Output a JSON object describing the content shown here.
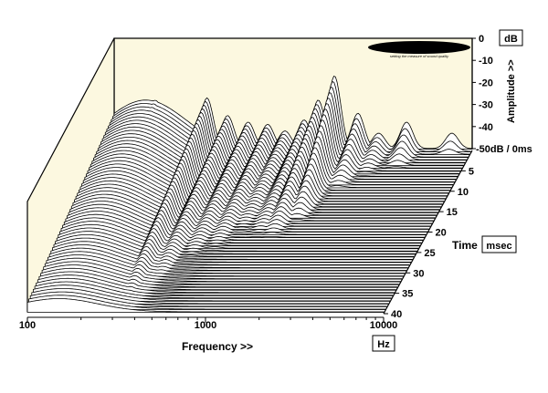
{
  "chart_data": {
    "type": "waterfall",
    "logo": "MILLER AUDIO RESEARCH",
    "logo_tagline": "setting the measure of sound quality",
    "x_axis": {
      "label": "Frequency >>",
      "unit": "Hz",
      "scale": "log",
      "range": [
        100,
        10000
      ],
      "ticks": [
        "100",
        "1000",
        "10000"
      ]
    },
    "amplitude_axis": {
      "label": "Amplitude >>",
      "unit": "dB",
      "range": [
        -50,
        0
      ],
      "ticks": [
        "0",
        "-10",
        "-20",
        "-30",
        "-40",
        "-50dB / 0ms"
      ]
    },
    "time_axis": {
      "label": "Time",
      "unit": "msec",
      "range": [
        0,
        40
      ],
      "ticks": [
        "5",
        "10",
        "15",
        "20",
        "25",
        "30",
        "35",
        "40"
      ]
    },
    "floor_db": -50,
    "slices": 60,
    "resonances": [
      {
        "freq_hz": 170,
        "peak_db": -28,
        "decay_ms": 40
      },
      {
        "freq_hz": 230,
        "peak_db": -36,
        "decay_ms": 40
      },
      {
        "freq_hz": 330,
        "peak_db": -27,
        "decay_ms": 40
      },
      {
        "freq_hz": 430,
        "peak_db": -35,
        "decay_ms": 34
      },
      {
        "freq_hz": 560,
        "peak_db": -38,
        "decay_ms": 28
      },
      {
        "freq_hz": 720,
        "peak_db": -39,
        "decay_ms": 26
      },
      {
        "freq_hz": 900,
        "peak_db": -42,
        "decay_ms": 22
      },
      {
        "freq_hz": 1150,
        "peak_db": -37,
        "decay_ms": 22
      },
      {
        "freq_hz": 1380,
        "peak_db": -28,
        "decay_ms": 22
      },
      {
        "freq_hz": 1700,
        "peak_db": -17,
        "decay_ms": 18
      },
      {
        "freq_hz": 2300,
        "peak_db": -34,
        "decay_ms": 10
      },
      {
        "freq_hz": 3000,
        "peak_db": -43,
        "decay_ms": 7
      },
      {
        "freq_hz": 4300,
        "peak_db": -38,
        "decay_ms": 5
      },
      {
        "freq_hz": 7700,
        "peak_db": -43,
        "decay_ms": 2
      }
    ]
  }
}
